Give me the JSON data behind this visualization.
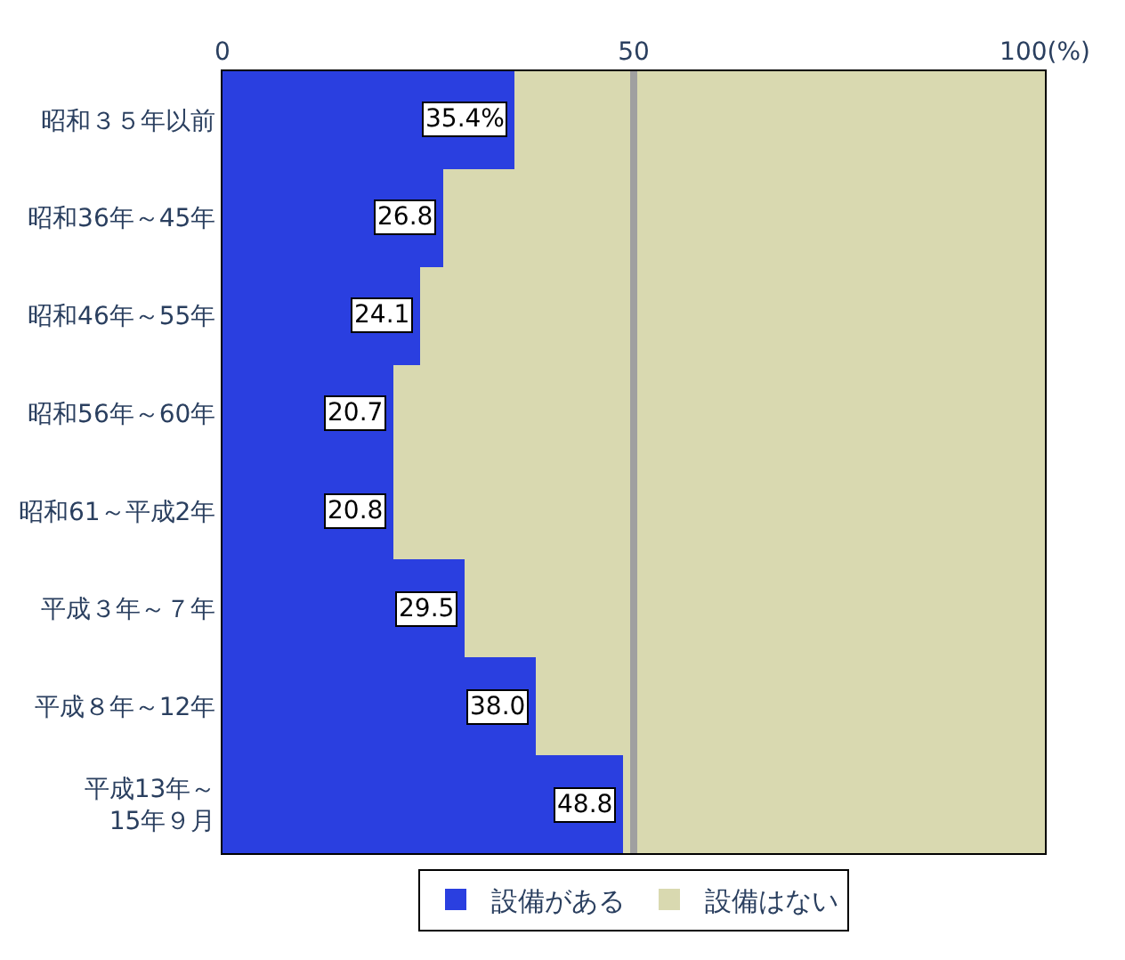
{
  "chart_data": {
    "type": "bar",
    "orientation": "horizontal",
    "stacked": true,
    "categories": [
      "昭和３５年以前",
      "昭和36年～45年",
      "昭和46年～55年",
      "昭和56年～60年",
      "昭和61～平成2年",
      "平成３年～７年",
      "平成８年～12年",
      "平成13年～\n15年９月"
    ],
    "series": [
      {
        "name": "設備がある",
        "color": "#2a3fe0",
        "values": [
          35.4,
          26.8,
          24.1,
          20.7,
          20.8,
          29.5,
          38.0,
          48.8
        ],
        "value_labels": [
          "35.4%",
          "26.8",
          "24.1",
          "20.7",
          "20.8",
          "29.5",
          "38.0",
          "48.8"
        ]
      },
      {
        "name": "設備はない",
        "color": "#d9d9b0",
        "values": [
          64.6,
          73.2,
          75.9,
          79.3,
          79.2,
          70.5,
          62.0,
          51.2
        ]
      }
    ],
    "xlim": [
      0,
      100
    ],
    "xticks": [
      0,
      50,
      {
        "value": 100,
        "label": "100(%)"
      }
    ],
    "ref_lines": [
      {
        "axis": "x",
        "value": 50,
        "color": "#a0a0a0"
      }
    ],
    "legend": "bottom"
  }
}
